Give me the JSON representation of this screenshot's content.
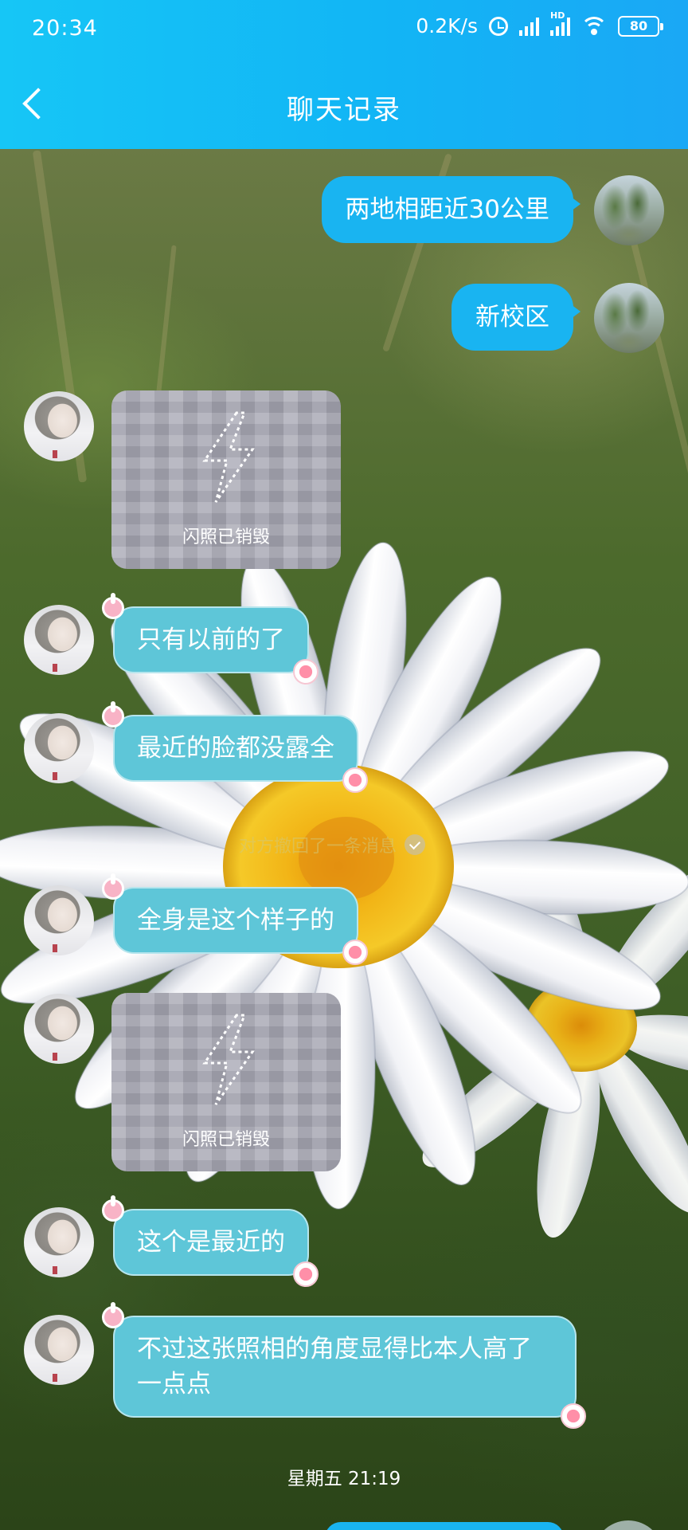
{
  "status_bar": {
    "time": "20:34",
    "net_speed": "0.2K/s",
    "battery": "80"
  },
  "header": {
    "title": "聊天记录"
  },
  "messages": [
    {
      "side": "out",
      "text": "两地相距近30公里"
    },
    {
      "side": "out",
      "text": "新校区"
    },
    {
      "side": "in",
      "type": "flash",
      "label": "闪照已销毁"
    },
    {
      "side": "in",
      "text": "只有以前的了"
    },
    {
      "side": "in",
      "text": "最近的脸都没露全"
    },
    {
      "side": "system",
      "text": "对方撤回了一条消息"
    },
    {
      "side": "in",
      "text": "全身是这个样子的"
    },
    {
      "side": "in",
      "type": "flash",
      "label": "闪照已销毁"
    },
    {
      "side": "in",
      "text": "这个是最近的"
    },
    {
      "side": "in",
      "text": "不过这张照相的角度显得比本人高了一点点"
    }
  ],
  "date_divider": "星期五 21:19",
  "colors": {
    "header": "#12b5f5",
    "outgoing_bubble": "#19b4f1",
    "incoming_bubble": "#5ec6d8"
  }
}
